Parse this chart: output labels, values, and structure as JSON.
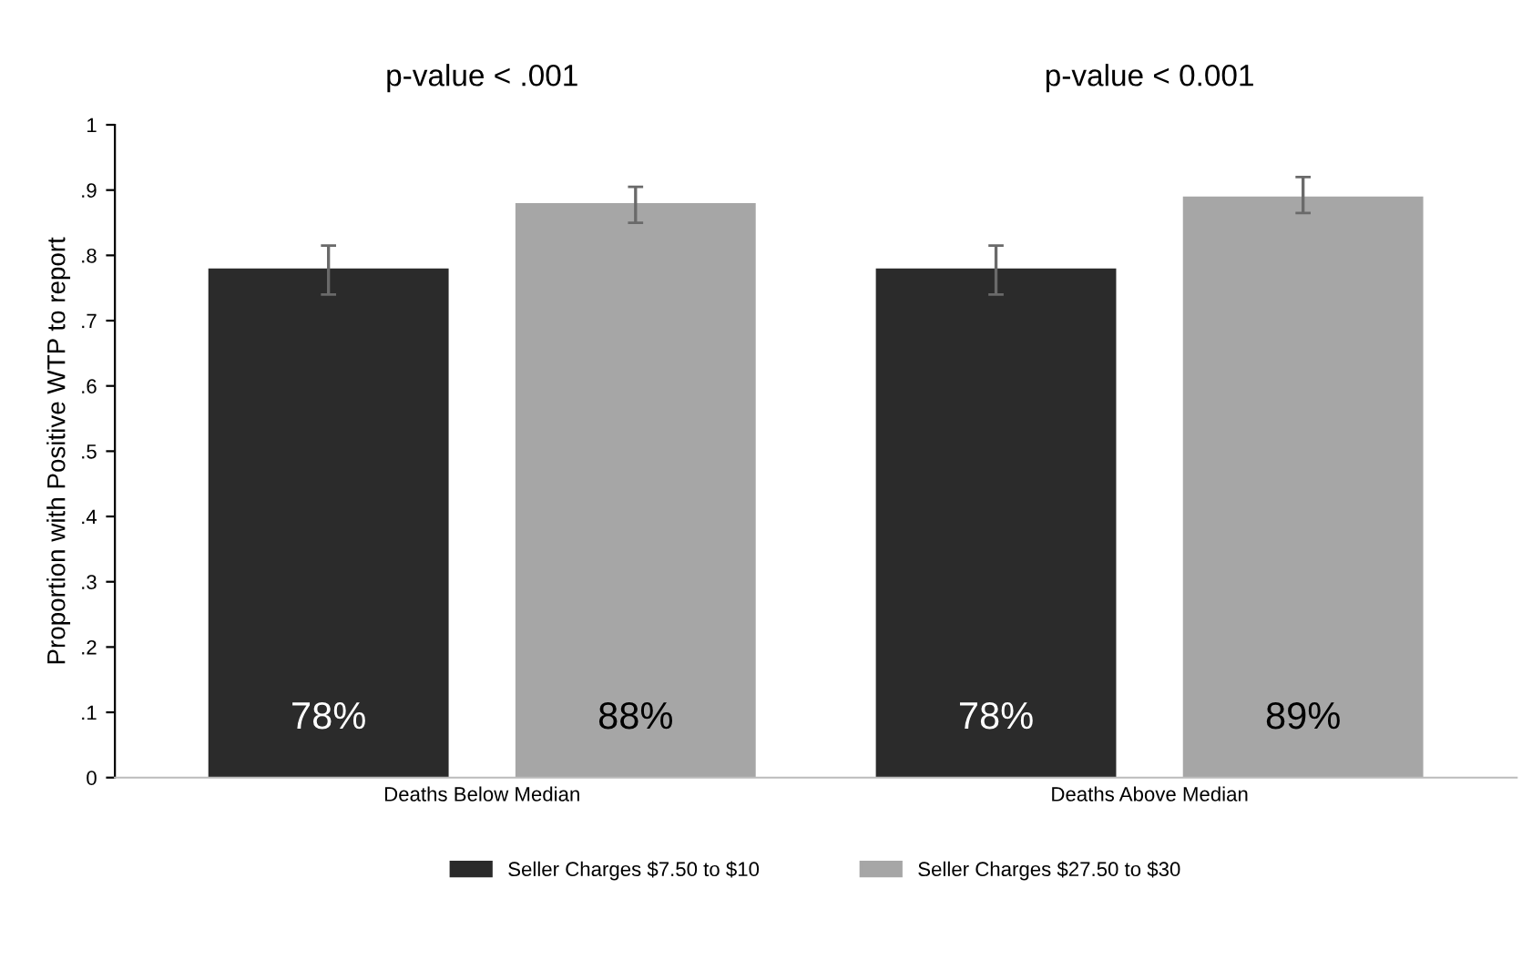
{
  "chart_data": {
    "type": "bar",
    "ylabel": "Proportion with Positive WTP to report",
    "categories": [
      "Deaths Below Median",
      "Deaths Above Median"
    ],
    "series": [
      {
        "name": "Seller Charges $7.50 to $10",
        "color": "#2b2b2b",
        "values": [
          0.78,
          0.78
        ],
        "errors": [
          [
            0.74,
            0.815
          ],
          [
            0.74,
            0.815
          ]
        ],
        "value_labels": [
          "78%",
          "78%"
        ]
      },
      {
        "name": "Seller Charges $27.50 to $30",
        "color": "#a6a6a6",
        "values": [
          0.88,
          0.89
        ],
        "errors": [
          [
            0.85,
            0.905
          ],
          [
            0.865,
            0.92
          ]
        ],
        "value_labels": [
          "88%",
          "89%"
        ]
      }
    ],
    "annotations": [
      "p-value < .001",
      "p-value < 0.001"
    ],
    "ylim": [
      0,
      1
    ],
    "yticks": [
      0,
      {
        "value": 0.1,
        "label": ".1"
      },
      {
        "value": 0.2,
        "label": ".2"
      },
      {
        "value": 0.3,
        "label": ".3"
      },
      {
        "value": 0.4,
        "label": ".4"
      },
      {
        "value": 0.5,
        "label": ".5"
      },
      {
        "value": 0.6,
        "label": ".6"
      },
      {
        "value": 0.7,
        "label": ".7"
      },
      {
        "value": 0.8,
        "label": ".8"
      },
      {
        "value": 0.9,
        "label": ".9"
      },
      1
    ],
    "grid": false,
    "legend": "bottom"
  }
}
